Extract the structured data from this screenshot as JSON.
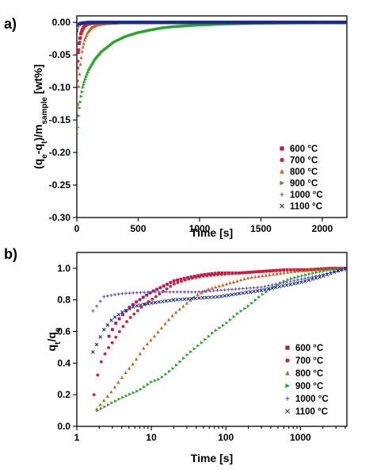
{
  "chart_data": [
    {
      "type": "scatter",
      "panel_label": "a)",
      "xlabel": "Time [s]",
      "ylabel": {
        "pre": "(q",
        "s1": "e",
        "mid": "-q",
        "s2": "t",
        "mid2": ")/m",
        "s3": "sample",
        "post": " [wt%]"
      },
      "x_scale": "linear",
      "xlim": [
        0,
        2200
      ],
      "ylim": [
        -0.3,
        0.01
      ],
      "x_ticks": [
        0,
        500,
        1000,
        1500,
        2000
      ],
      "x_tick_labels": [
        "0",
        "500",
        "1000",
        "1500",
        "2000"
      ],
      "y_ticks": [
        0.0,
        -0.05,
        -0.1,
        -0.15,
        -0.2,
        -0.25,
        -0.3
      ],
      "y_tick_labels": [
        "0.00",
        "-0.05",
        "-0.10",
        "-0.15",
        "-0.20",
        "-0.25",
        "-0.30"
      ],
      "legend_position": "lower-right",
      "series": [
        {
          "name": "600 °C",
          "color": "#b5175e",
          "marker": "square",
          "points": [
            [
              5,
              -0.07
            ],
            [
              10,
              -0.05
            ],
            [
              20,
              -0.03
            ],
            [
              35,
              -0.015
            ],
            [
              55,
              -0.007
            ],
            [
              80,
              -0.003
            ],
            [
              120,
              -0.001
            ],
            [
              180,
              0
            ],
            [
              300,
              0
            ],
            [
              600,
              0
            ],
            [
              1000,
              0
            ],
            [
              1500,
              0
            ],
            [
              2000,
              0
            ],
            [
              2190,
              0
            ]
          ]
        },
        {
          "name": "700 °C",
          "color": "#d81e2a",
          "marker": "circle",
          "points": [
            [
              3,
              -0.09
            ],
            [
              8,
              -0.065
            ],
            [
              15,
              -0.045
            ],
            [
              25,
              -0.028
            ],
            [
              40,
              -0.015
            ],
            [
              60,
              -0.007
            ],
            [
              90,
              -0.003
            ],
            [
              130,
              -0.001
            ],
            [
              200,
              0
            ],
            [
              400,
              0
            ],
            [
              800,
              0
            ],
            [
              1500,
              0
            ],
            [
              2190,
              0
            ]
          ]
        },
        {
          "name": "800 °C",
          "color": "#c8641e",
          "marker": "triangle-up",
          "points": [
            [
              2,
              -0.17
            ],
            [
              6,
              -0.14
            ],
            [
              12,
              -0.11
            ],
            [
              20,
              -0.085
            ],
            [
              30,
              -0.063
            ],
            [
              45,
              -0.042
            ],
            [
              65,
              -0.026
            ],
            [
              90,
              -0.015
            ],
            [
              120,
              -0.008
            ],
            [
              160,
              -0.004
            ],
            [
              220,
              -0.002
            ],
            [
              300,
              -0.001
            ],
            [
              400,
              0
            ],
            [
              800,
              0
            ],
            [
              1500,
              0
            ],
            [
              2190,
              0
            ]
          ]
        },
        {
          "name": "900 °C",
          "color": "#2aa42a",
          "marker": "triangle-right",
          "points": [
            [
              2,
              -0.2
            ],
            [
              10,
              -0.155
            ],
            [
              20,
              -0.135
            ],
            [
              35,
              -0.115
            ],
            [
              50,
              -0.1
            ],
            [
              75,
              -0.085
            ],
            [
              100,
              -0.073
            ],
            [
              150,
              -0.057
            ],
            [
              200,
              -0.046
            ],
            [
              300,
              -0.031
            ],
            [
              400,
              -0.022
            ],
            [
              500,
              -0.016
            ],
            [
              600,
              -0.012
            ],
            [
              700,
              -0.0085
            ],
            [
              800,
              -0.0065
            ],
            [
              1000,
              -0.004
            ],
            [
              1200,
              -0.0025
            ],
            [
              1500,
              -0.0012
            ],
            [
              2000,
              -0.0003
            ],
            [
              2190,
              0
            ]
          ]
        },
        {
          "name": "1000 °C",
          "color": "#6a4bc0",
          "marker": "plus",
          "points": [
            [
              1,
              -0.008
            ],
            [
              5,
              -0.004
            ],
            [
              15,
              -0.002
            ],
            [
              40,
              -0.001
            ],
            [
              100,
              0
            ],
            [
              500,
              0
            ],
            [
              1000,
              0
            ],
            [
              1500,
              0
            ],
            [
              2190,
              0
            ]
          ]
        },
        {
          "name": "1100 °C",
          "color": "#1a2c8c",
          "marker": "x",
          "points": [
            [
              1,
              -0.012
            ],
            [
              5,
              -0.006
            ],
            [
              15,
              -0.003
            ],
            [
              40,
              -0.001
            ],
            [
              100,
              0
            ],
            [
              500,
              0
            ],
            [
              1000,
              0
            ],
            [
              1500,
              0
            ],
            [
              2190,
              0
            ]
          ]
        }
      ]
    },
    {
      "type": "scatter",
      "panel_label": "b)",
      "xlabel": "Time [s]",
      "ylabel": {
        "pre": "q",
        "s1": "t",
        "mid": "/q",
        "s2": "e"
      },
      "x_scale": "log",
      "xlim": [
        1,
        4200
      ],
      "ylim": [
        0.0,
        1.1
      ],
      "x_ticks": [
        1,
        10,
        100,
        1000
      ],
      "x_tick_labels": [
        "1",
        "10",
        "100",
        "1000"
      ],
      "y_ticks": [
        0.0,
        0.2,
        0.4,
        0.6,
        0.8,
        1.0
      ],
      "y_tick_labels": [
        "0.0",
        "0.2",
        "0.4",
        "0.6",
        "0.8",
        "1.0"
      ],
      "legend_position": "lower-right",
      "series": [
        {
          "name": "600 °C",
          "color": "#b5175e",
          "marker": "square",
          "points": [
            [
              2.7,
              0.57
            ],
            [
              3.3,
              0.65
            ],
            [
              4,
              0.7
            ],
            [
              5,
              0.75
            ],
            [
              6,
              0.78
            ],
            [
              8,
              0.82
            ],
            [
              10,
              0.85
            ],
            [
              15,
              0.89
            ],
            [
              20,
              0.92
            ],
            [
              30,
              0.94
            ],
            [
              50,
              0.96
            ],
            [
              80,
              0.97
            ],
            [
              150,
              0.97
            ],
            [
              300,
              0.98
            ],
            [
              600,
              0.99
            ],
            [
              1200,
              0.99
            ],
            [
              2500,
              1.0
            ],
            [
              4000,
              1.0
            ]
          ]
        },
        {
          "name": "700 °C",
          "color": "#d81e2a",
          "marker": "circle",
          "points": [
            [
              1.7,
              0.2
            ],
            [
              2,
              0.38
            ],
            [
              2.5,
              0.48
            ],
            [
              3,
              0.53
            ],
            [
              4,
              0.62
            ],
            [
              5,
              0.68
            ],
            [
              6.5,
              0.73
            ],
            [
              8,
              0.77
            ],
            [
              10,
              0.8
            ],
            [
              15,
              0.86
            ],
            [
              20,
              0.9
            ],
            [
              30,
              0.93
            ],
            [
              50,
              0.95
            ],
            [
              80,
              0.96
            ],
            [
              150,
              0.97
            ],
            [
              300,
              0.98
            ],
            [
              700,
              0.99
            ],
            [
              1500,
              0.99
            ],
            [
              3000,
              1.0
            ],
            [
              4000,
              1.0
            ]
          ]
        },
        {
          "name": "800 °C",
          "color": "#c8641e",
          "marker": "triangle-up",
          "points": [
            [
              1.85,
              0.11
            ],
            [
              2.8,
              0.21
            ],
            [
              3.5,
              0.27
            ],
            [
              4.5,
              0.34
            ],
            [
              6,
              0.41
            ],
            [
              8,
              0.5
            ],
            [
              10,
              0.55
            ],
            [
              13,
              0.61
            ],
            [
              16,
              0.66
            ],
            [
              20,
              0.71
            ],
            [
              30,
              0.78
            ],
            [
              40,
              0.83
            ],
            [
              60,
              0.87
            ],
            [
              100,
              0.9
            ],
            [
              200,
              0.94
            ],
            [
              400,
              0.96
            ],
            [
              800,
              0.98
            ],
            [
              1500,
              0.99
            ],
            [
              3000,
              1.0
            ],
            [
              4000,
              1.0
            ]
          ]
        },
        {
          "name": "900 °C",
          "color": "#2aa42a",
          "marker": "triangle-right",
          "points": [
            [
              1.9,
              0.1
            ],
            [
              3,
              0.15
            ],
            [
              4,
              0.18
            ],
            [
              5,
              0.2
            ],
            [
              7,
              0.23
            ],
            [
              10,
              0.28
            ],
            [
              13,
              0.3
            ],
            [
              20,
              0.37
            ],
            [
              30,
              0.45
            ],
            [
              45,
              0.52
            ],
            [
              70,
              0.6
            ],
            [
              100,
              0.65
            ],
            [
              150,
              0.72
            ],
            [
              200,
              0.76
            ],
            [
              300,
              0.83
            ],
            [
              400,
              0.87
            ],
            [
              500,
              0.9
            ],
            [
              700,
              0.93
            ],
            [
              1000,
              0.95
            ],
            [
              1500,
              0.97
            ],
            [
              2500,
              0.99
            ],
            [
              4000,
              1.0
            ]
          ]
        },
        {
          "name": "1000 °C",
          "color": "#6a4bc0",
          "marker": "plus",
          "points": [
            [
              1.65,
              0.73
            ],
            [
              2.3,
              0.82
            ],
            [
              3,
              0.83
            ],
            [
              4,
              0.84
            ],
            [
              6,
              0.845
            ],
            [
              10,
              0.85
            ],
            [
              20,
              0.85
            ],
            [
              40,
              0.85
            ],
            [
              80,
              0.86
            ],
            [
              150,
              0.87
            ],
            [
              300,
              0.88
            ],
            [
              600,
              0.91
            ],
            [
              1000,
              0.93
            ],
            [
              2000,
              0.96
            ],
            [
              3000,
              0.98
            ],
            [
              4000,
              0.99
            ]
          ]
        },
        {
          "name": "1100 °C",
          "color": "#1a2c8c",
          "marker": "x",
          "points": [
            [
              1.65,
              0.47
            ],
            [
              2.3,
              0.61
            ],
            [
              3,
              0.68
            ],
            [
              4,
              0.72
            ],
            [
              6,
              0.76
            ],
            [
              10,
              0.78
            ],
            [
              20,
              0.8
            ],
            [
              40,
              0.81
            ],
            [
              80,
              0.82
            ],
            [
              150,
              0.84
            ],
            [
              300,
              0.86
            ],
            [
              600,
              0.89
            ],
            [
              1000,
              0.91
            ],
            [
              2000,
              0.95
            ],
            [
              3000,
              0.98
            ],
            [
              4000,
              1.0
            ]
          ]
        }
      ]
    }
  ]
}
